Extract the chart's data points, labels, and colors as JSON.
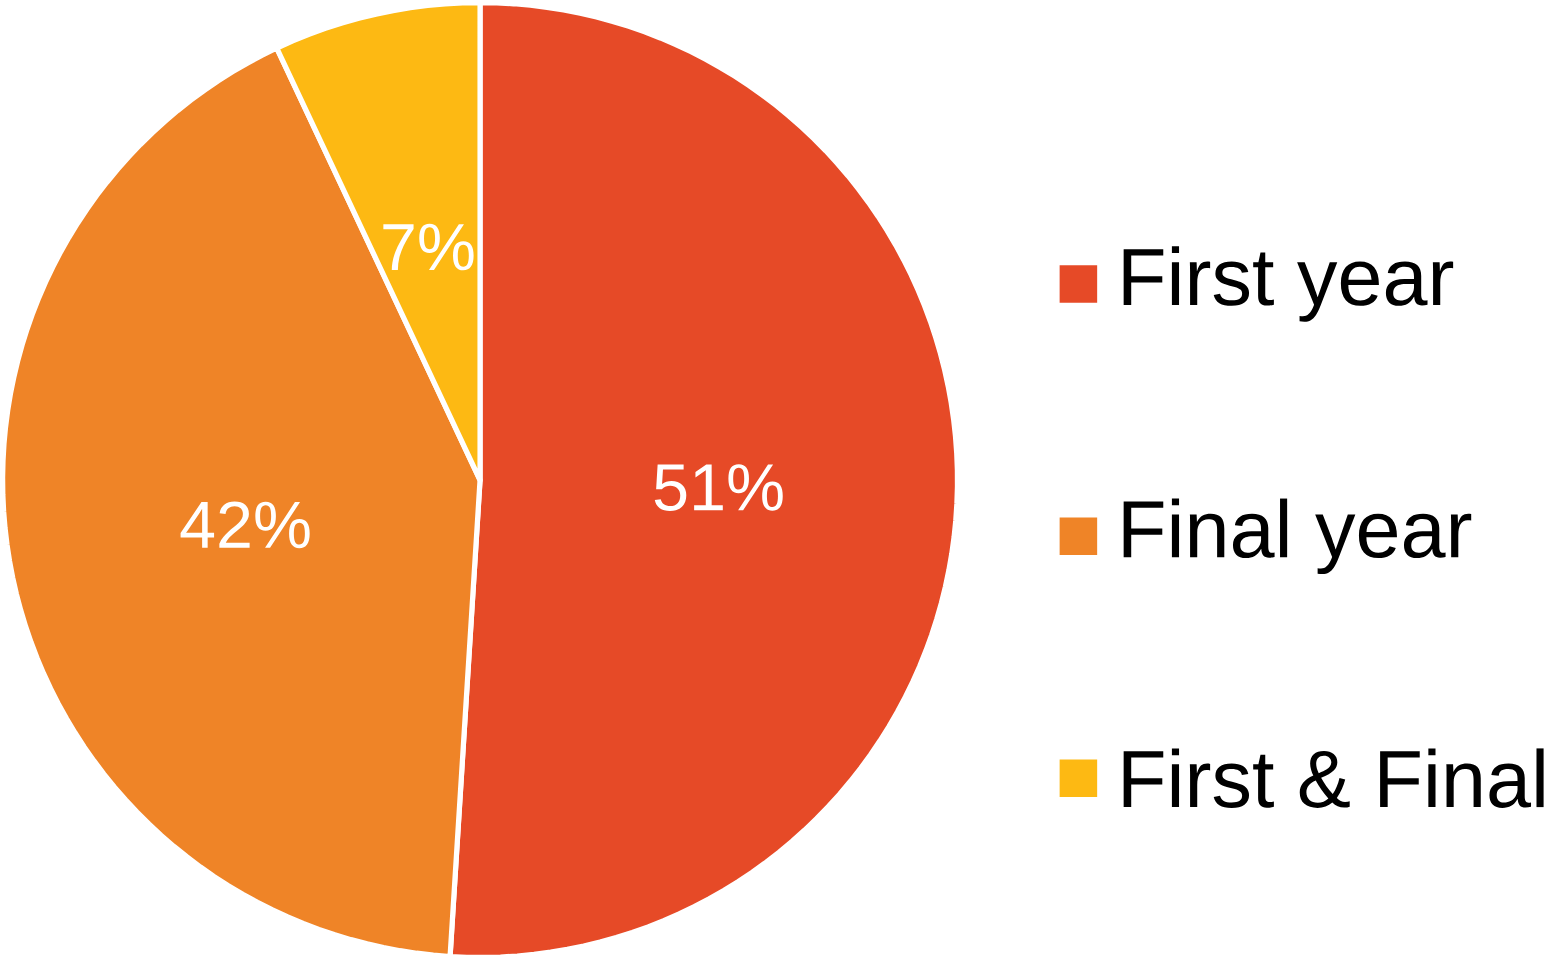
{
  "chart_data": {
    "type": "pie",
    "categories": [
      "First year",
      "Final year",
      "First & Final"
    ],
    "values": [
      51,
      42,
      7
    ],
    "colors": [
      "#e64a27",
      "#ef8427",
      "#fdb913"
    ],
    "value_labels": [
      "51%",
      "42%",
      "7%"
    ],
    "legend": "right"
  }
}
